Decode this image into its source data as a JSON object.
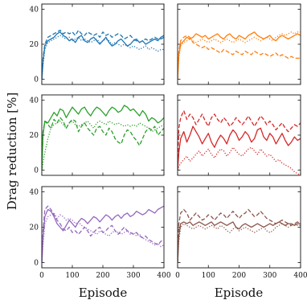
{
  "figure": {
    "ylabel": "Drag reduction [%]",
    "xlabel": "Episode"
  },
  "chart_data": [
    {
      "type": "line",
      "panel": "row1-left",
      "color": "#1f77b4",
      "xlim": [
        0,
        400
      ],
      "ylim": [
        -3,
        43
      ],
      "yticks": [
        0,
        20,
        40
      ],
      "xticks": [
        0,
        100,
        200,
        300,
        400
      ],
      "show_xticklabels": false,
      "x": [
        0,
        4,
        10,
        20,
        30,
        40,
        50,
        60,
        70,
        80,
        90,
        100,
        110,
        120,
        130,
        140,
        150,
        160,
        170,
        180,
        190,
        200,
        210,
        220,
        230,
        240,
        250,
        260,
        270,
        280,
        290,
        300,
        310,
        320,
        330,
        340,
        350,
        360,
        370,
        380,
        390,
        400
      ],
      "series": [
        {
          "style": "solid",
          "values": [
            0,
            10,
            19,
            22,
            23,
            24,
            26,
            27,
            25,
            24,
            22,
            23,
            21,
            24,
            25,
            22,
            21,
            23,
            24,
            22,
            20,
            22,
            24,
            21,
            19,
            20,
            22,
            23,
            21,
            19,
            20,
            22,
            23,
            21,
            22,
            20,
            21,
            22,
            23,
            22,
            24,
            25
          ]
        },
        {
          "style": "dashed",
          "values": [
            0,
            12,
            20,
            24,
            25,
            26,
            27,
            28,
            26,
            27,
            26,
            27,
            25,
            28,
            26,
            25,
            27,
            26,
            25,
            26,
            24,
            27,
            25,
            26,
            24,
            25,
            26,
            25,
            23,
            24,
            25,
            23,
            22,
            21,
            22,
            23,
            22,
            23,
            24,
            23,
            23,
            24
          ]
        },
        {
          "style": "dotted",
          "values": [
            0,
            8,
            17,
            21,
            22,
            23,
            24,
            25,
            24,
            23,
            24,
            22,
            23,
            24,
            22,
            23,
            22,
            21,
            22,
            23,
            21,
            22,
            23,
            22,
            20,
            21,
            20,
            19,
            20,
            19,
            18,
            19,
            18,
            17,
            18,
            19,
            17,
            18,
            17,
            16,
            17,
            17
          ]
        }
      ]
    },
    {
      "type": "line",
      "panel": "row1-right",
      "color": "#ff7f0e",
      "xlim": [
        0,
        400
      ],
      "ylim": [
        -3,
        43
      ],
      "yticks": [
        0,
        20,
        40
      ],
      "xticks": [
        0,
        100,
        200,
        300,
        400
      ],
      "show_xticklabels": false,
      "x": [
        0,
        4,
        10,
        20,
        30,
        40,
        50,
        60,
        70,
        80,
        90,
        100,
        110,
        120,
        130,
        140,
        150,
        160,
        170,
        180,
        190,
        200,
        210,
        220,
        230,
        240,
        250,
        260,
        270,
        280,
        290,
        300,
        310,
        320,
        330,
        340,
        350,
        360,
        370,
        380,
        390,
        400
      ],
      "series": [
        {
          "style": "solid",
          "values": [
            0,
            14,
            20,
            22,
            24,
            23,
            24,
            26,
            25,
            24,
            25,
            23,
            24,
            25,
            26,
            24,
            23,
            25,
            26,
            24,
            23,
            25,
            24,
            23,
            25,
            26,
            27,
            25,
            24,
            23,
            24,
            25,
            23,
            22,
            24,
            25,
            24,
            23,
            24,
            25,
            26,
            25
          ]
        },
        {
          "style": "dashed",
          "values": [
            0,
            16,
            22,
            24,
            25,
            24,
            21,
            20,
            19,
            18,
            19,
            17,
            18,
            17,
            16,
            15,
            17,
            16,
            15,
            14,
            16,
            15,
            14,
            16,
            15,
            14,
            16,
            15,
            14,
            15,
            14,
            13,
            14,
            15,
            13,
            14,
            13,
            12,
            13,
            12,
            12,
            12
          ]
        },
        {
          "style": "dotted",
          "values": [
            0,
            12,
            19,
            21,
            22,
            23,
            22,
            21,
            22,
            23,
            22,
            21,
            22,
            23,
            22,
            21,
            22,
            23,
            22,
            21,
            22,
            23,
            22,
            21,
            22,
            23,
            24,
            23,
            22,
            23,
            24,
            23,
            22,
            24,
            25,
            26,
            25,
            26,
            27,
            26,
            27,
            27
          ]
        }
      ]
    },
    {
      "type": "line",
      "panel": "row2-left",
      "color": "#2ca02c",
      "xlim": [
        0,
        400
      ],
      "ylim": [
        -3,
        43
      ],
      "yticks": [
        0,
        20,
        40
      ],
      "xticks": [
        0,
        100,
        200,
        300,
        400
      ],
      "show_xticklabels": false,
      "x": [
        0,
        4,
        10,
        20,
        30,
        40,
        50,
        60,
        70,
        80,
        90,
        100,
        110,
        120,
        130,
        140,
        150,
        160,
        170,
        180,
        190,
        200,
        210,
        220,
        230,
        240,
        250,
        260,
        270,
        280,
        290,
        300,
        310,
        320,
        330,
        340,
        350,
        360,
        370,
        380,
        390,
        400
      ],
      "series": [
        {
          "style": "solid",
          "values": [
            0,
            20,
            28,
            27,
            30,
            33,
            31,
            35,
            34,
            30,
            33,
            36,
            34,
            32,
            35,
            36,
            33,
            31,
            34,
            36,
            35,
            33,
            31,
            34,
            36,
            35,
            33,
            34,
            37,
            36,
            34,
            35,
            33,
            31,
            34,
            32,
            28,
            30,
            29,
            27,
            28,
            30
          ]
        },
        {
          "style": "dashed",
          "values": [
            0,
            22,
            28,
            26,
            24,
            29,
            27,
            30,
            28,
            24,
            27,
            29,
            28,
            22,
            25,
            27,
            24,
            22,
            20,
            24,
            25,
            22,
            20,
            24,
            22,
            18,
            16,
            15,
            20,
            23,
            22,
            19,
            17,
            14,
            18,
            22,
            24,
            23,
            25,
            20,
            22,
            24
          ]
        },
        {
          "style": "dotted",
          "values": [
            0,
            4,
            10,
            18,
            24,
            26,
            27,
            28,
            26,
            24,
            27,
            28,
            26,
            25,
            26,
            27,
            28,
            26,
            24,
            27,
            28,
            27,
            26,
            28,
            27,
            26,
            27,
            26,
            25,
            26,
            25,
            26,
            25,
            27,
            26,
            25,
            24,
            22,
            23,
            24,
            25,
            26
          ]
        }
      ]
    },
    {
      "type": "line",
      "panel": "row2-right",
      "color": "#d62728",
      "xlim": [
        0,
        400
      ],
      "ylim": [
        -3,
        43
      ],
      "yticks": [
        0,
        20,
        40
      ],
      "xticks": [
        0,
        100,
        200,
        300,
        400
      ],
      "show_xticklabels": false,
      "x": [
        0,
        4,
        10,
        20,
        30,
        40,
        50,
        60,
        70,
        80,
        90,
        100,
        110,
        120,
        130,
        140,
        150,
        160,
        170,
        180,
        190,
        200,
        210,
        220,
        230,
        240,
        250,
        260,
        270,
        280,
        290,
        300,
        310,
        320,
        330,
        340,
        350,
        360,
        370,
        380,
        390,
        400
      ],
      "series": [
        {
          "style": "solid",
          "values": [
            0,
            10,
            18,
            22,
            16,
            20,
            25,
            22,
            19,
            15,
            18,
            21,
            16,
            13,
            17,
            20,
            18,
            15,
            20,
            23,
            21,
            17,
            19,
            22,
            20,
            16,
            18,
            23,
            24,
            19,
            17,
            21,
            19,
            15,
            18,
            21,
            17,
            14,
            16,
            19,
            17,
            18
          ]
        },
        {
          "style": "dashed",
          "values": [
            0,
            24,
            30,
            34,
            29,
            32,
            30,
            26,
            29,
            32,
            28,
            25,
            30,
            32,
            29,
            27,
            30,
            28,
            25,
            27,
            30,
            28,
            26,
            28,
            31,
            28,
            25,
            28,
            31,
            29,
            26,
            28,
            26,
            23,
            25,
            27,
            24,
            22,
            24,
            26,
            25,
            27
          ]
        },
        {
          "style": "dotted",
          "values": [
            0,
            2,
            4,
            6,
            8,
            5,
            7,
            9,
            11,
            8,
            10,
            12,
            9,
            7,
            10,
            12,
            11,
            8,
            10,
            13,
            11,
            9,
            8,
            10,
            12,
            13,
            11,
            9,
            12,
            10,
            8,
            9,
            7,
            5,
            6,
            4,
            3,
            2,
            1,
            -1,
            -2,
            -3
          ]
        }
      ]
    },
    {
      "type": "line",
      "panel": "row3-left",
      "color": "#9467bd",
      "xlim": [
        0,
        400
      ],
      "ylim": [
        -3,
        43
      ],
      "yticks": [
        0,
        20,
        40
      ],
      "xticks": [
        0,
        100,
        200,
        300,
        400
      ],
      "show_xticklabels": true,
      "x": [
        0,
        4,
        10,
        20,
        30,
        40,
        50,
        60,
        70,
        80,
        90,
        100,
        110,
        120,
        130,
        140,
        150,
        160,
        170,
        180,
        190,
        200,
        210,
        220,
        230,
        240,
        250,
        260,
        270,
        280,
        290,
        300,
        310,
        320,
        330,
        340,
        350,
        360,
        370,
        380,
        390,
        400
      ],
      "series": [
        {
          "style": "solid",
          "values": [
            0,
            14,
            26,
            30,
            29,
            26,
            22,
            20,
            18,
            21,
            24,
            22,
            20,
            23,
            25,
            24,
            22,
            24,
            26,
            25,
            23,
            25,
            27,
            26,
            24,
            26,
            27,
            25,
            27,
            28,
            26,
            27,
            29,
            28,
            27,
            28,
            30,
            29,
            28,
            30,
            31,
            32
          ]
        },
        {
          "style": "dashed",
          "values": [
            0,
            18,
            30,
            32,
            30,
            27,
            24,
            22,
            19,
            18,
            20,
            17,
            18,
            16,
            18,
            20,
            18,
            15,
            17,
            19,
            20,
            17,
            18,
            20,
            21,
            18,
            16,
            18,
            20,
            18,
            17,
            16,
            17,
            15,
            14,
            15,
            13,
            12,
            11,
            10,
            12,
            13
          ]
        },
        {
          "style": "dotted",
          "values": [
            0,
            10,
            22,
            26,
            27,
            28,
            25,
            27,
            26,
            24,
            25,
            24,
            22,
            23,
            21,
            20,
            19,
            18,
            17,
            16,
            18,
            17,
            16,
            15,
            17,
            18,
            17,
            16,
            17,
            18,
            16,
            17,
            15,
            16,
            14,
            13,
            12,
            11,
            10,
            11,
            9,
            10
          ]
        }
      ]
    },
    {
      "type": "line",
      "panel": "row3-right",
      "color": "#8c564b",
      "xlim": [
        0,
        400
      ],
      "ylim": [
        -3,
        43
      ],
      "yticks": [
        0,
        20,
        40
      ],
      "xticks": [
        0,
        100,
        200,
        300,
        400
      ],
      "show_xticklabels": true,
      "x": [
        0,
        4,
        10,
        20,
        30,
        40,
        50,
        60,
        70,
        80,
        90,
        100,
        110,
        120,
        130,
        140,
        150,
        160,
        170,
        180,
        190,
        200,
        210,
        220,
        230,
        240,
        250,
        260,
        270,
        280,
        290,
        300,
        310,
        320,
        330,
        340,
        350,
        360,
        370,
        380,
        390,
        400
      ],
      "series": [
        {
          "style": "solid",
          "values": [
            0,
            15,
            22,
            23,
            22,
            23,
            21,
            22,
            23,
            22,
            21,
            22,
            23,
            21,
            22,
            23,
            22,
            21,
            22,
            23,
            20,
            19,
            21,
            22,
            21,
            20,
            21,
            22,
            21,
            20,
            21,
            22,
            21,
            22,
            23,
            22,
            21,
            22,
            22,
            21,
            22,
            22
          ]
        },
        {
          "style": "dashed",
          "values": [
            0,
            22,
            28,
            30,
            28,
            24,
            26,
            28,
            26,
            24,
            25,
            27,
            26,
            24,
            26,
            28,
            27,
            25,
            27,
            29,
            27,
            25,
            27,
            28,
            30,
            28,
            26,
            27,
            29,
            27,
            25,
            24,
            23,
            22,
            23,
            24,
            23,
            22,
            21,
            22,
            23,
            22
          ]
        },
        {
          "style": "dotted",
          "values": [
            0,
            12,
            20,
            22,
            21,
            20,
            19,
            20,
            21,
            20,
            19,
            20,
            21,
            20,
            19,
            21,
            20,
            18,
            17,
            19,
            20,
            18,
            19,
            20,
            19,
            18,
            17,
            18,
            19,
            20,
            18,
            17,
            18,
            20,
            21,
            22,
            21,
            20,
            21,
            22,
            21,
            21
          ]
        }
      ]
    }
  ]
}
